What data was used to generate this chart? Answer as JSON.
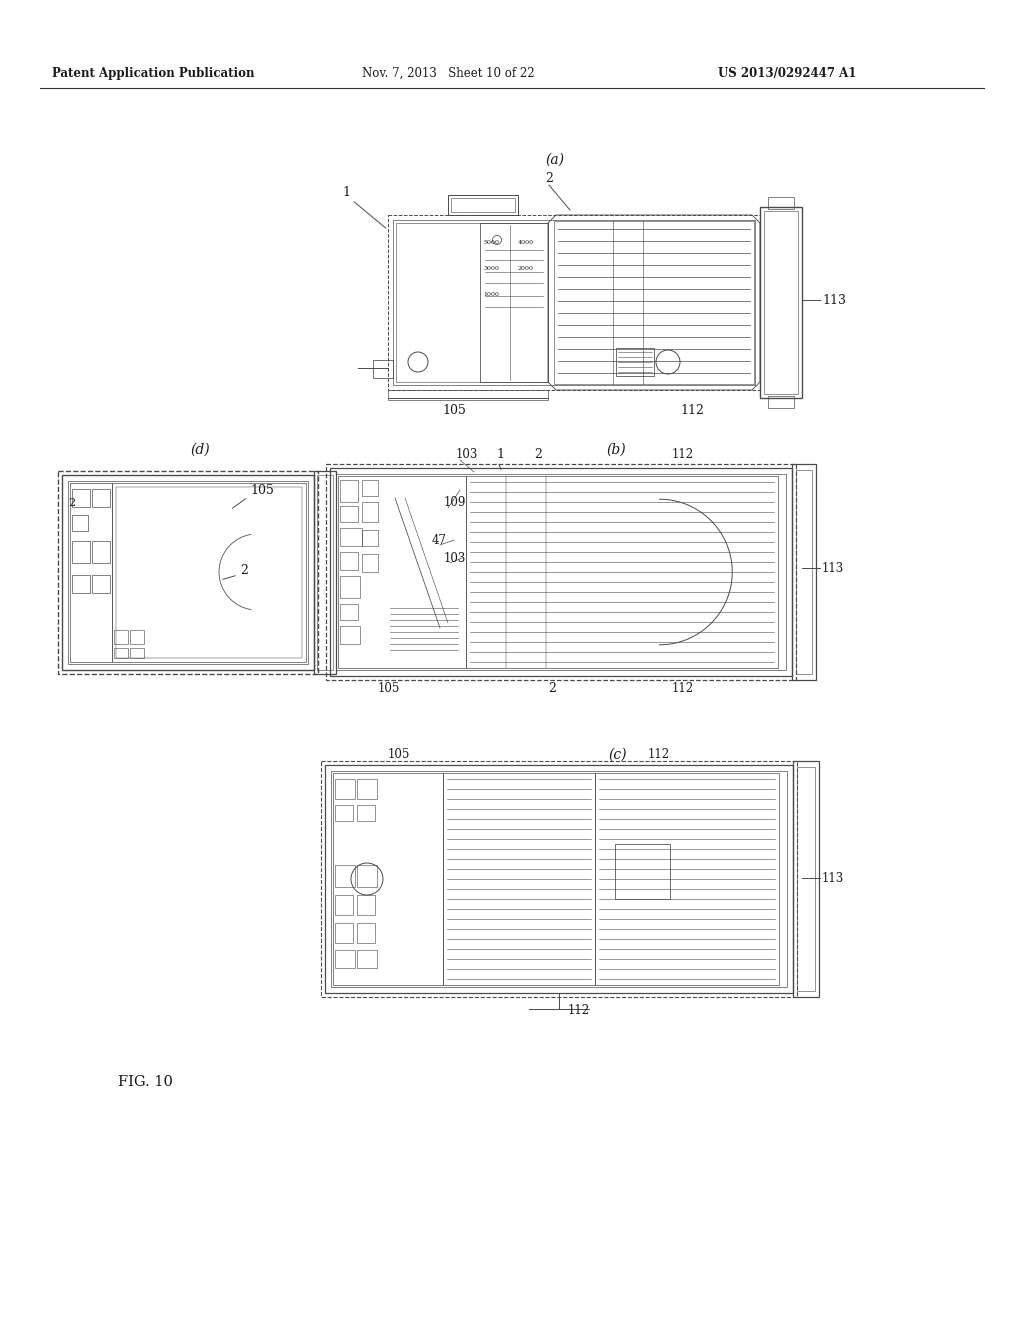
{
  "bg_color": "#ffffff",
  "header_left": "Patent Application Publication",
  "header_mid": "Nov. 7, 2013   Sheet 10 of 22",
  "header_right": "US 2013/0292447 A1",
  "fig_label": "FIG. 10",
  "text_color": "#1a1a1a",
  "line_color": "#4a4a4a",
  "line_color_light": "#888888",
  "line_width": 0.7,
  "dashed": [
    3,
    3
  ]
}
